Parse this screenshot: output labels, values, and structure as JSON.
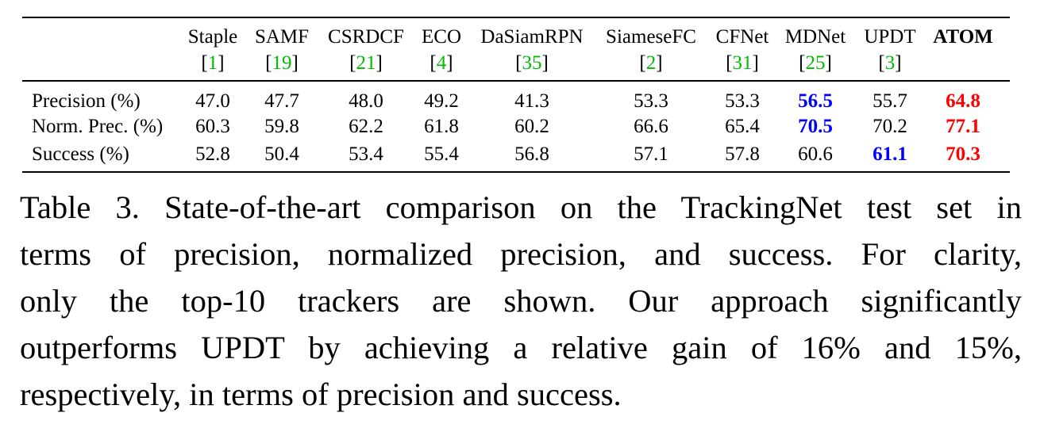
{
  "table": {
    "columns": [
      {
        "name": "Staple",
        "ref": "1"
      },
      {
        "name": "SAMF",
        "ref": "19"
      },
      {
        "name": "CSRDCF",
        "ref": "21"
      },
      {
        "name": "ECO",
        "ref": "4"
      },
      {
        "name": "DaSiamRPN",
        "ref": "35"
      },
      {
        "name": "SiameseFC",
        "ref": "2"
      },
      {
        "name": "CFNet",
        "ref": "31"
      },
      {
        "name": "MDNet",
        "ref": "25"
      },
      {
        "name": "UPDT",
        "ref": "3"
      },
      {
        "name": "ATOM",
        "ref": ""
      }
    ],
    "rows": [
      {
        "label": "Precision (%)",
        "values": [
          "47.0",
          "47.7",
          "48.0",
          "49.2",
          "41.3",
          "53.3",
          "53.3",
          "56.5",
          "55.7",
          "64.8"
        ],
        "best": 9,
        "second": 7
      },
      {
        "label": "Norm. Prec. (%)",
        "values": [
          "60.3",
          "59.8",
          "62.2",
          "61.8",
          "60.2",
          "66.6",
          "65.4",
          "70.5",
          "70.2",
          "77.1"
        ],
        "best": 9,
        "second": 7
      },
      {
        "label": "Success (%)",
        "values": [
          "52.8",
          "50.4",
          "53.4",
          "55.4",
          "56.8",
          "57.1",
          "57.8",
          "60.6",
          "61.1",
          "70.3"
        ],
        "best": 9,
        "second": 8
      }
    ],
    "colors": {
      "best": "#ff0000",
      "second": "#0000ff",
      "ref": "#00bb00"
    }
  },
  "caption": {
    "lines": [
      "Table 3. State-of-the-art comparison on the TrackingNet test set in",
      "terms of precision, normalized precision, and success. For clarity,",
      "only the top-10 trackers are shown.  Our approach significantly",
      "outperforms UPDT by achieving a relative gain of 16% and 15%,",
      "respectively, in terms of precision and success."
    ]
  }
}
